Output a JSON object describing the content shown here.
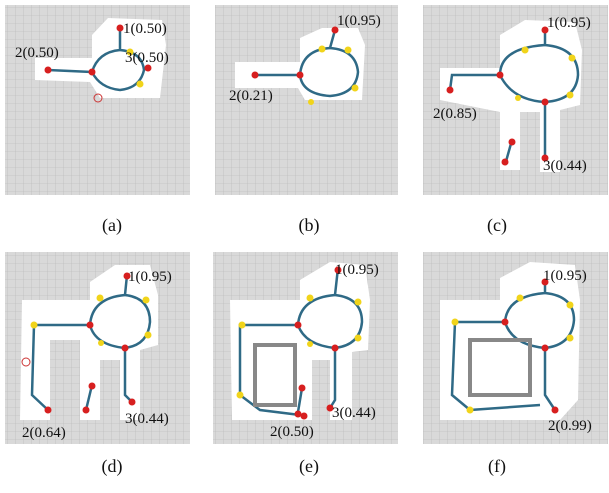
{
  "panels": [
    {
      "caption": "(a)",
      "labels": [
        "1(0.50)",
        "2(0.50)",
        "3(0.50)"
      ]
    },
    {
      "caption": "(b)",
      "labels": [
        "1(0.95)",
        "2(0.21)"
      ]
    },
    {
      "caption": "(c)",
      "labels": [
        "1(0.95)",
        "2(0.85)",
        "3(0.44)"
      ]
    },
    {
      "caption": "(d)",
      "labels": [
        "1(0.95)",
        "2(0.64)",
        "3(0.44)"
      ]
    },
    {
      "caption": "(e)",
      "labels": [
        "1(0.95)",
        "2(0.50)",
        "3(0.44)"
      ]
    },
    {
      "caption": "(f)",
      "labels": [
        "1(0.95)",
        "2(0.99)"
      ]
    }
  ]
}
